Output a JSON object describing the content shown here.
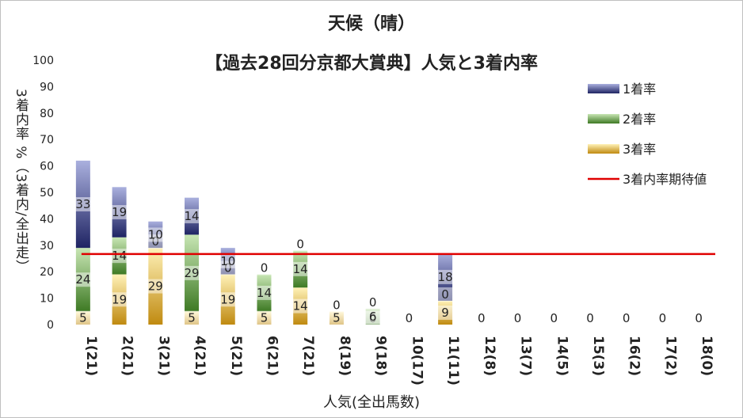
{
  "chart_data": {
    "type": "bar",
    "title": "天候（晴）",
    "subtitle": "【過去28回分京都大賞典】人気と3着内率",
    "xlabel": "人気(全出馬数)",
    "ylabel": "3着内率 %（3着内/全出走）",
    "ylim": [
      0,
      100
    ],
    "yticks": [
      0,
      10,
      20,
      30,
      40,
      50,
      60,
      70,
      80,
      90,
      100
    ],
    "categories": [
      "1(21)",
      "2(21)",
      "3(21)",
      "4(21)",
      "5(21)",
      "6(21)",
      "7(21)",
      "8(19)",
      "9(18)",
      "10(17)",
      "11(11)",
      "12(8)",
      "13(7)",
      "14(5)",
      "15(3)",
      "16(2)",
      "17(2)",
      "18(0)"
    ],
    "series": [
      {
        "name": "3着率",
        "color": "#c9a02a",
        "values": [
          5,
          19,
          29,
          5,
          19,
          5,
          14,
          5,
          0,
          0,
          9,
          0,
          0,
          0,
          0,
          0,
          0,
          0
        ]
      },
      {
        "name": "2着率",
        "color": "#5f9e3c",
        "values": [
          24,
          14,
          0,
          29,
          0,
          14,
          14,
          0,
          6,
          0,
          0,
          0,
          0,
          0,
          0,
          0,
          0,
          0
        ]
      },
      {
        "name": "1着率",
        "color": "#4b5199",
        "values": [
          33,
          19,
          10,
          14,
          10,
          0,
          0,
          0,
          0,
          0,
          18,
          0,
          0,
          0,
          0,
          0,
          0,
          0
        ]
      }
    ],
    "labels": [
      {
        "category": "1(21)",
        "bottom": "5",
        "middle": "24",
        "top": "33"
      },
      {
        "category": "2(21)",
        "bottom": "19",
        "middle": "14",
        "top": "19"
      },
      {
        "category": "3(21)",
        "bottom": "29",
        "middle": "0",
        "top": "10"
      },
      {
        "category": "4(21)",
        "bottom": "5",
        "middle": "29",
        "top": "14"
      },
      {
        "category": "5(21)",
        "bottom": "19",
        "middle": "0",
        "top": "10"
      },
      {
        "category": "6(21)",
        "bottom": "5",
        "middle": "14",
        "top": "0"
      },
      {
        "category": "7(21)",
        "bottom": "14",
        "middle": "14",
        "top": "0"
      },
      {
        "category": "8(19)",
        "bottom": "5",
        "middle": "0",
        "top": ""
      },
      {
        "category": "9(18)",
        "bottom": "0",
        "middle": "6",
        "top": "0"
      },
      {
        "category": "10(17)",
        "bottom": "0",
        "middle": "",
        "top": ""
      },
      {
        "category": "11(11)",
        "bottom": "9",
        "middle": "0",
        "top": "18"
      },
      {
        "category": "12(8)",
        "bottom": "0",
        "middle": "",
        "top": ""
      },
      {
        "category": "13(7)",
        "bottom": "0",
        "middle": "",
        "top": ""
      },
      {
        "category": "14(5)",
        "bottom": "0",
        "middle": "",
        "top": ""
      },
      {
        "category": "15(3)",
        "bottom": "0",
        "middle": "",
        "top": ""
      },
      {
        "category": "16(2)",
        "bottom": "0",
        "middle": "",
        "top": ""
      },
      {
        "category": "17(2)",
        "bottom": "0",
        "middle": "",
        "top": ""
      },
      {
        "category": "18(0)",
        "bottom": "0",
        "middle": "",
        "top": ""
      }
    ],
    "expected_line": {
      "name": "3着内率期待値",
      "value": 26.7,
      "color": "#e00000"
    },
    "legend": [
      "1着率",
      "2着率",
      "3着率",
      "3着内率期待値"
    ],
    "legend_position": "top-right",
    "grid": false
  }
}
